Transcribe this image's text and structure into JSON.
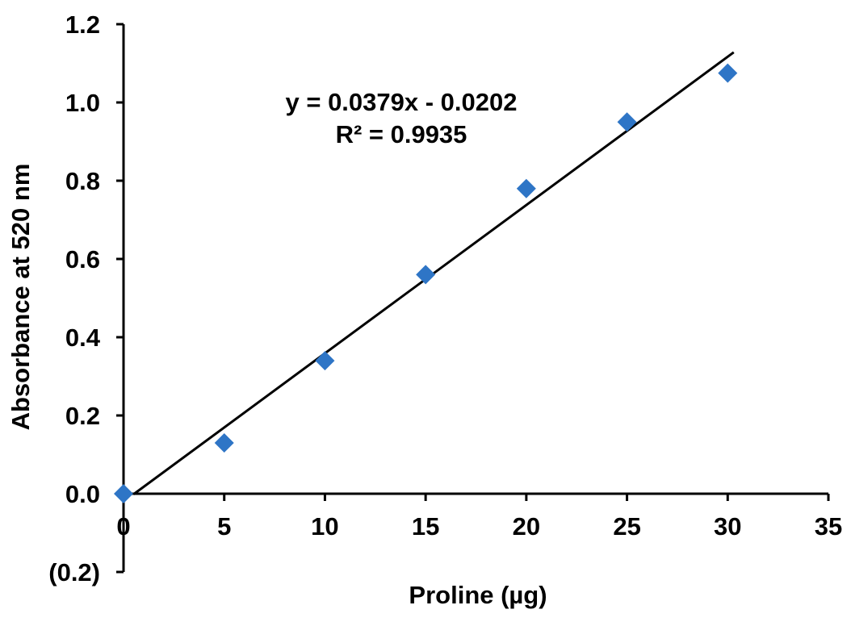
{
  "chart_data": {
    "type": "scatter",
    "title": "",
    "xlabel": "Proline (µg)",
    "ylabel": "Absorbance at 520 nm",
    "xlim": [
      0,
      35
    ],
    "ylim": [
      -0.2,
      1.2
    ],
    "x_ticks": [
      0,
      5,
      10,
      15,
      20,
      25,
      30,
      35
    ],
    "x_tick_labels": [
      "0",
      "5",
      "10",
      "15",
      "20",
      "25",
      "30",
      "35"
    ],
    "y_ticks": [
      -0.2,
      0.0,
      0.2,
      0.4,
      0.6,
      0.8,
      1.0,
      1.2
    ],
    "y_tick_labels": [
      "(0.2)",
      "0.0",
      "0.2",
      "0.4",
      "0.6",
      "0.8",
      "1.0",
      "1.2"
    ],
    "grid": false,
    "legend": "none",
    "series": [
      {
        "marker": "diamond",
        "color": "#2E75C6",
        "x": [
          0,
          5,
          10,
          15,
          20,
          25,
          30
        ],
        "y": [
          0.0,
          0.13,
          0.34,
          0.56,
          0.78,
          0.95,
          1.075
        ]
      }
    ],
    "trendline": {
      "type": "linear",
      "slope": 0.0379,
      "intercept": -0.0202,
      "x_range": [
        0.5,
        30.3
      ],
      "color": "#000000"
    },
    "annotations": [
      {
        "text": "y = 0.0379x - 0.0202"
      },
      {
        "text": "R² = 0.9935"
      }
    ]
  }
}
